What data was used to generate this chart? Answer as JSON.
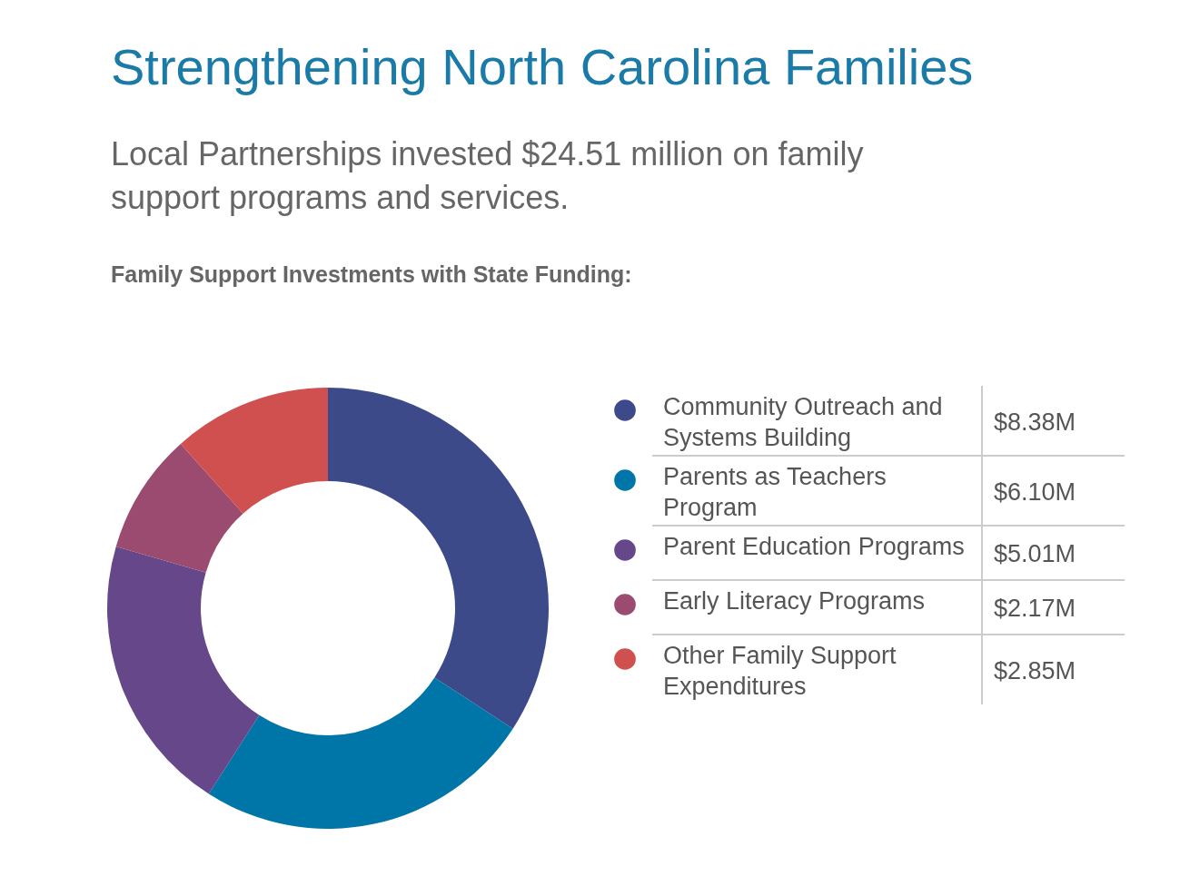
{
  "chart_data": {
    "type": "donut",
    "title": "Strengthening North Carolina Families",
    "subtitle": "Local Partnerships invested $24.51 million on family support programs and services.",
    "annotations": [
      "Family Support Investments with State Funding:"
    ],
    "categories": [
      "Community Outreach and Systems Building",
      "Parents as Teachers Program",
      "Parent Education Programs",
      "Early Literacy Programs",
      "Other Family Support Expenditures"
    ],
    "values": [
      8.38,
      6.1,
      5.01,
      2.17,
      2.85
    ],
    "value_labels": [
      "$8.38M",
      "$6.10M",
      "$5.01M",
      "$2.17M",
      "$2.85M"
    ],
    "colors": [
      "#3d4a8a",
      "#0076a8",
      "#65478a",
      "#9b4a70",
      "#d05050"
    ],
    "legend": "right"
  }
}
